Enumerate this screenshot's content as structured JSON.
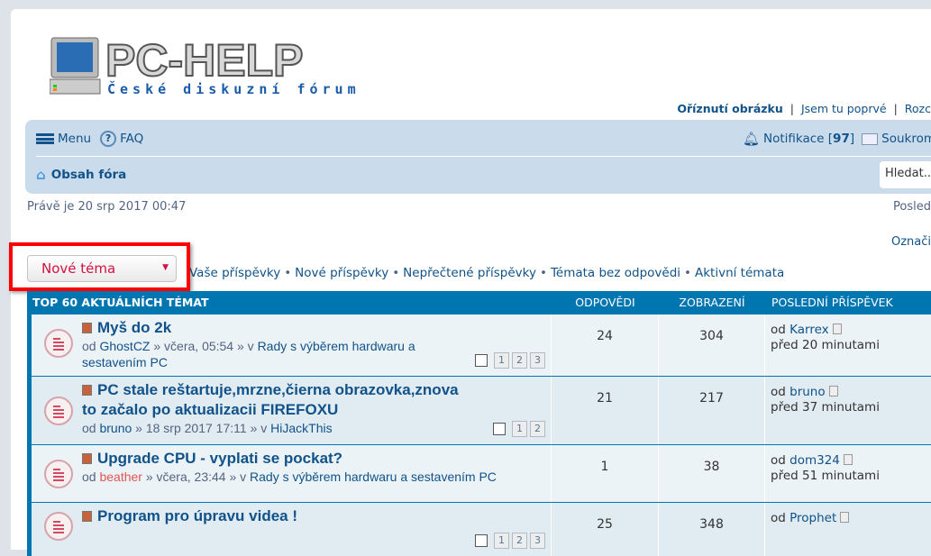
{
  "logo": {
    "text": "PC-HELP",
    "subtitle": "České diskuzní fórum"
  },
  "toplinks": [
    "Oříznutí obrázku",
    "Jsem tu poprvé",
    "Rozc"
  ],
  "nav": {
    "menu": "Menu",
    "faq": "FAQ",
    "home": "Obsah fóra",
    "notifications": "Notifikace [",
    "notif_count": "97",
    "notif_close": "]",
    "messages": "Soukrom",
    "search_placeholder": "Hledat..."
  },
  "date": "Právě je 20 srp 2017 00:47",
  "last_visit": "Posled",
  "mark": "Označi",
  "new_topic": "Nové téma",
  "quick_links": [
    "Vaše příspěvky",
    "Nové příspěvky",
    "Nepřečtené příspěvky",
    "Témata bez odpovědi",
    "Aktivní témata"
  ],
  "table": {
    "header": {
      "title": "TOP 60 AKTUÁLNÍCH TÉMAT",
      "replies": "ODPOVĚDI",
      "views": "ZOBRAZENÍ",
      "last": "POSLEDNÍ PŘÍSPĚVEK"
    },
    "rows": [
      {
        "title": "Myš do 2k",
        "by": "od ",
        "author": "GhostCZ",
        "when": " » včera, 05:54 » v ",
        "forum": "Rady s výběrem hardwaru a sestavením PC",
        "pages": [
          "1",
          "2",
          "3"
        ],
        "replies": "24",
        "views": "304",
        "last_prefix": "od ",
        "last_author": "Karrex",
        "last_time": "před 20 minutami"
      },
      {
        "title": "PC stale reštartuje,mrzne,čierna obrazovka,znova to začalo po aktualizacii FIREFOXU",
        "by": "od ",
        "author": "bruno",
        "when": " » 18 srp 2017 17:11 » v ",
        "forum": "HiJackThis",
        "pages": [
          "1",
          "2"
        ],
        "replies": "21",
        "views": "217",
        "last_prefix": "od ",
        "last_author": "bruno",
        "last_time": "před 37 minutami"
      },
      {
        "title": "Upgrade CPU - vyplati se pockat?",
        "by": "od ",
        "author": "beather",
        "author_color": "#e05656",
        "when": " » včera, 23:44 » v ",
        "forum": "Rady s výběrem hardwaru a sestavením PC",
        "pages": [],
        "replies": "1",
        "views": "38",
        "last_prefix": "od ",
        "last_author": "dom324",
        "last_time": "před 51 minutami"
      },
      {
        "title": "Program pro úpravu videa !",
        "by": "",
        "author": "",
        "when": "",
        "forum": "",
        "pages": [
          "1",
          "2",
          "3"
        ],
        "replies": "25",
        "views": "348",
        "last_prefix": "od ",
        "last_author": "Prophet",
        "last_time": ""
      }
    ]
  }
}
